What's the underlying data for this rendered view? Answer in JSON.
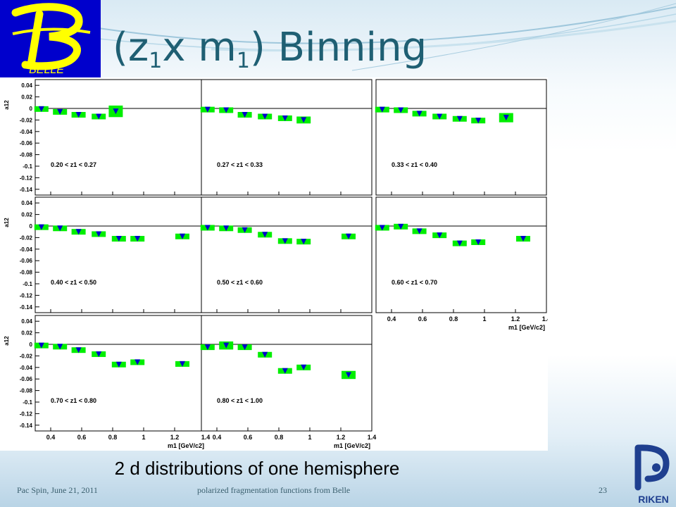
{
  "title": {
    "main": "(z",
    "sub1": "1",
    "mid": "x m",
    "sub2": "1",
    "end": ") Binning"
  },
  "logos": {
    "left": "BELLE",
    "right": "RIKEN"
  },
  "caption": "2 d distributions of one hemisphere",
  "footer": {
    "left": "Pac Spin, June 21, 2011",
    "center": "polarized fragmentation functions from Belle",
    "page": "23"
  },
  "colors": {
    "title": "#1f5f73",
    "logo_bg": "#0000cc",
    "logo_fg": "#ffff00",
    "marker": "#0000cc",
    "error_box": "#00ee00"
  },
  "chart_data": {
    "type": "scatter",
    "ylabel": "a12",
    "xlabel": "m1 [GeV/c2]",
    "xlim": [
      0.3,
      1.4
    ],
    "ylim": [
      -0.15,
      0.05
    ],
    "x_ticks": [
      "0.4",
      "0.6",
      "0.8",
      "1",
      "1.2",
      "1.4"
    ],
    "y_ticks": [
      "0.04",
      "0.02",
      "0",
      "-0.02",
      "-0.04",
      "-0.06",
      "-0.08",
      "-0.1",
      "-0.12",
      "-0.14"
    ],
    "grid": false,
    "panels": [
      {
        "label": "0.20 < z1 < 0.27",
        "x": [
          0.34,
          0.46,
          0.58,
          0.71,
          0.82
        ],
        "y": [
          -0.001,
          -0.006,
          -0.011,
          -0.014,
          -0.005
        ],
        "err": [
          0.002,
          0.003,
          0.003,
          0.004,
          0.01
        ]
      },
      {
        "label": "0.27 < z1 < 0.33",
        "x": [
          0.34,
          0.46,
          0.58,
          0.71,
          0.84,
          0.96
        ],
        "y": [
          -0.002,
          -0.003,
          -0.011,
          -0.014,
          -0.017,
          -0.02
        ],
        "err": [
          0.002,
          0.002,
          0.002,
          0.003,
          0.004,
          0.006
        ]
      },
      {
        "label": "0.33 < z1 < 0.40",
        "x": [
          0.34,
          0.46,
          0.58,
          0.71,
          0.84,
          0.96,
          1.14
        ],
        "y": [
          -0.002,
          -0.003,
          -0.009,
          -0.014,
          -0.018,
          -0.021,
          -0.016
        ],
        "err": [
          0.002,
          0.002,
          0.002,
          0.002,
          0.003,
          0.003,
          0.008
        ]
      },
      {
        "label": "0.40 < z1 < 0.50",
        "x": [
          0.34,
          0.46,
          0.58,
          0.71,
          0.84,
          0.96,
          1.25
        ],
        "y": [
          -0.002,
          -0.004,
          -0.01,
          -0.014,
          -0.022,
          -0.022,
          -0.018
        ],
        "err": [
          0.002,
          0.002,
          0.002,
          0.002,
          0.003,
          0.003,
          0.003
        ]
      },
      {
        "label": "0.50 < z1 < 0.60",
        "x": [
          0.34,
          0.46,
          0.58,
          0.71,
          0.84,
          0.96,
          1.25
        ],
        "y": [
          -0.003,
          -0.004,
          -0.007,
          -0.015,
          -0.026,
          -0.027,
          -0.018
        ],
        "err": [
          0.002,
          0.002,
          0.002,
          0.002,
          0.003,
          0.003,
          0.003
        ]
      },
      {
        "label": "0.60 < z1 < 0.70",
        "x": [
          0.34,
          0.46,
          0.58,
          0.71,
          0.84,
          0.96,
          1.25
        ],
        "y": [
          -0.003,
          -0.001,
          -0.009,
          -0.016,
          -0.03,
          -0.028,
          -0.022
        ],
        "err": [
          0.002,
          0.002,
          0.002,
          0.002,
          0.003,
          0.003,
          0.003
        ]
      },
      {
        "label": "0.70 < z1 < 0.80",
        "x": [
          0.34,
          0.46,
          0.58,
          0.71,
          0.84,
          0.96,
          1.25
        ],
        "y": [
          -0.002,
          -0.004,
          -0.01,
          -0.017,
          -0.035,
          -0.031,
          -0.034
        ],
        "err": [
          0.002,
          0.002,
          0.002,
          0.003,
          0.003,
          0.003,
          0.003
        ]
      },
      {
        "label": "0.80 < z1 < 1.00",
        "x": [
          0.34,
          0.46,
          0.58,
          0.71,
          0.84,
          0.96,
          1.25
        ],
        "y": [
          -0.005,
          -0.002,
          -0.005,
          -0.018,
          -0.046,
          -0.04,
          -0.053
        ],
        "err": [
          0.004,
          0.007,
          0.003,
          0.003,
          0.004,
          0.004,
          0.007
        ]
      }
    ]
  }
}
